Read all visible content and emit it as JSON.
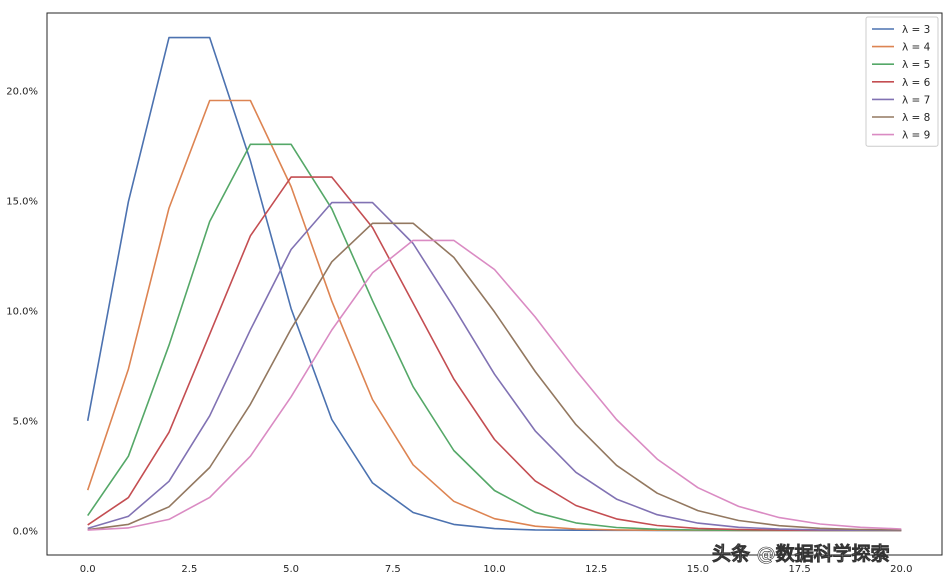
{
  "chart_data": {
    "type": "line",
    "title": "",
    "xlabel": "",
    "ylabel": "",
    "xlim": [
      -1,
      21
    ],
    "ylim": [
      -1.12,
      23.52
    ],
    "y_unit": "%",
    "grid": false,
    "legend_position": "top-right",
    "x_ticks": [
      "0.0",
      "2.5",
      "5.0",
      "7.5",
      "10.0",
      "12.5",
      "15.0",
      "17.5",
      "20.0"
    ],
    "x_tick_values": [
      0,
      2.5,
      5,
      7.5,
      10,
      12.5,
      15,
      17.5,
      20
    ],
    "y_ticks": [
      "0.0%",
      "5.0%",
      "10.0%",
      "15.0%",
      "20.0%"
    ],
    "y_tick_values": [
      0,
      5,
      10,
      15,
      20
    ],
    "x": [
      0,
      1,
      2,
      3,
      4,
      5,
      6,
      7,
      8,
      9,
      10,
      11,
      12,
      13,
      14,
      15,
      16,
      17,
      18,
      19,
      20
    ],
    "series": [
      {
        "name": "λ = 3",
        "color": "#4C72B0",
        "values": [
          4.98,
          14.94,
          22.4,
          22.4,
          16.8,
          10.08,
          5.04,
          2.16,
          0.81,
          0.27,
          0.081,
          0.022,
          0.0055,
          0.0013,
          0.0003,
          6e-05,
          0,
          0,
          0,
          0,
          0
        ]
      },
      {
        "name": "λ = 4",
        "color": "#DD8452",
        "values": [
          1.83,
          7.33,
          14.65,
          19.54,
          19.54,
          15.63,
          10.42,
          5.95,
          2.98,
          1.32,
          0.53,
          0.19,
          0.064,
          0.02,
          0.0057,
          0.0015,
          0.0004,
          0.0001,
          0,
          0,
          0
        ]
      },
      {
        "name": "λ = 5",
        "color": "#55A868",
        "values": [
          0.67,
          3.37,
          8.42,
          14.04,
          17.55,
          17.55,
          14.62,
          10.44,
          6.53,
          3.63,
          1.81,
          0.82,
          0.34,
          0.13,
          0.047,
          0.016,
          0.005,
          0.0015,
          0.0004,
          0.0001,
          0
        ]
      },
      {
        "name": "λ = 6",
        "color": "#C44E52",
        "values": [
          0.25,
          1.49,
          4.46,
          8.92,
          13.39,
          16.06,
          16.06,
          13.77,
          10.33,
          6.88,
          4.13,
          2.25,
          1.13,
          0.52,
          0.22,
          0.089,
          0.033,
          0.012,
          0.0039,
          0.0012,
          0.0004
        ]
      },
      {
        "name": "λ = 7",
        "color": "#8172B3",
        "values": [
          0.09,
          0.64,
          2.23,
          5.21,
          9.12,
          12.77,
          14.9,
          14.9,
          13.04,
          10.14,
          7.1,
          4.52,
          2.64,
          1.42,
          0.71,
          0.33,
          0.14,
          0.059,
          0.023,
          0.0085,
          0.003
        ]
      },
      {
        "name": "λ = 8",
        "color": "#937860",
        "values": [
          0.03,
          0.27,
          1.07,
          2.86,
          5.73,
          9.16,
          12.21,
          13.96,
          13.96,
          12.41,
          9.93,
          7.22,
          4.81,
          2.96,
          1.69,
          0.9,
          0.45,
          0.21,
          0.095,
          0.04,
          0.016
        ]
      },
      {
        "name": "λ = 9",
        "color": "#DA8BC3",
        "values": [
          0.01,
          0.11,
          0.5,
          1.5,
          3.37,
          6.07,
          9.11,
          11.71,
          13.18,
          13.18,
          11.86,
          9.7,
          7.28,
          5.04,
          3.24,
          1.94,
          1.09,
          0.58,
          0.29,
          0.14,
          0.062
        ]
      }
    ]
  },
  "watermark": "头条 @数据科学探索"
}
